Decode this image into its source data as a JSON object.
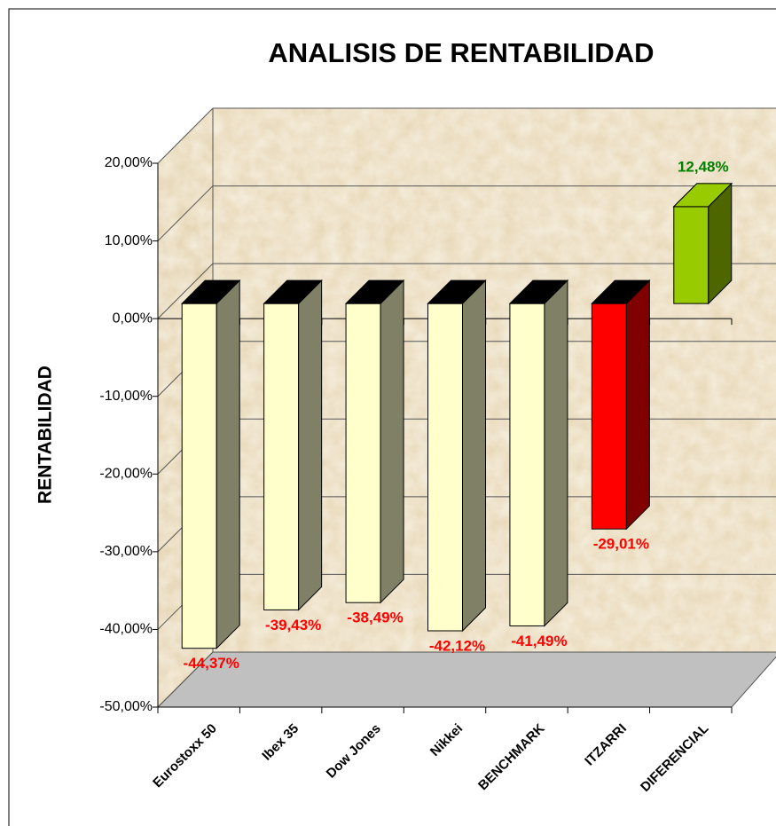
{
  "chart_data": {
    "type": "bar3d",
    "title": "ANALISIS DE RENTABILIDAD",
    "y_label": "RENTABILIDAD",
    "categories": [
      "Eurostoxx 50",
      "Ibex 35",
      "Dow Jones",
      "Nikkei",
      "BENCHMARK",
      "ITZARRI",
      "DIFERENCIAL"
    ],
    "values": [
      -44.37,
      -39.43,
      -38.49,
      -42.12,
      -41.49,
      -29.01,
      12.48
    ],
    "value_labels": [
      "-44,37%",
      "-39,43%",
      "-38,49%",
      "-42,12%",
      "-41,49%",
      "-29,01%",
      "12,48%"
    ],
    "colors": [
      "#ffffcc",
      "#ffffcc",
      "#ffffcc",
      "#ffffcc",
      "#ffffcc",
      "#ff0000",
      "#99cc00"
    ],
    "side_colors": [
      "#808066",
      "#808066",
      "#808066",
      "#808066",
      "#808066",
      "#800000",
      "#4d6600"
    ],
    "value_label_colors": [
      "#ff0000",
      "#ff0000",
      "#ff0000",
      "#ff0000",
      "#ff0000",
      "#ff0000",
      "#008000"
    ],
    "ylim": [
      -50,
      20
    ],
    "yticks": [
      {
        "value": 20,
        "label": "20,00%"
      },
      {
        "value": 10,
        "label": "10,00%"
      },
      {
        "value": 0,
        "label": "0,00%"
      },
      {
        "value": -10,
        "label": "-10,00%"
      },
      {
        "value": -20,
        "label": "-20,00%"
      },
      {
        "value": -30,
        "label": "-30,00%"
      },
      {
        "value": -40,
        "label": "-40,00%"
      },
      {
        "value": -50,
        "label": "-50,00%"
      }
    ],
    "grid": true
  }
}
